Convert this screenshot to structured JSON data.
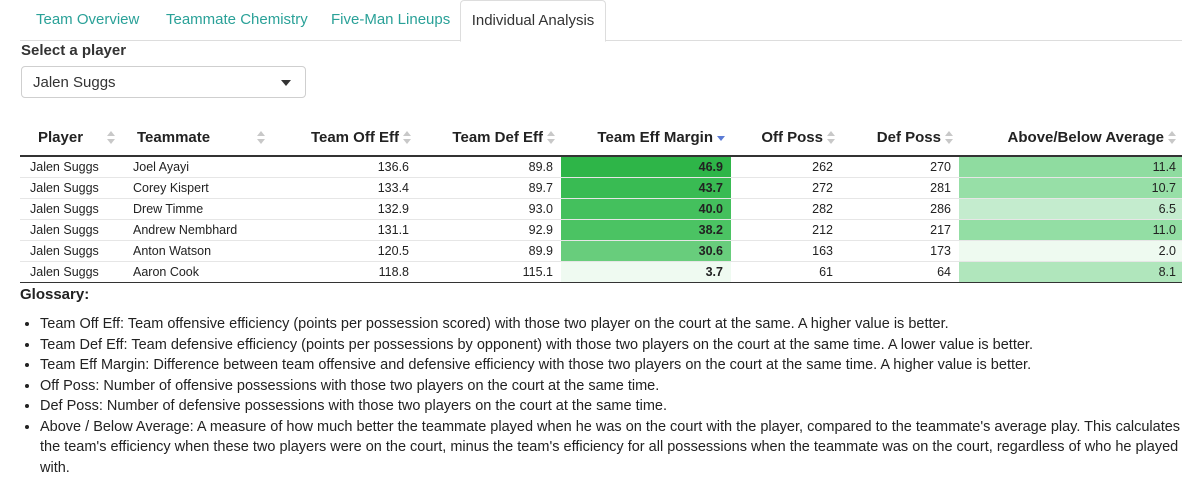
{
  "tabs": [
    {
      "label": "Team Overview"
    },
    {
      "label": "Teammate Chemistry"
    },
    {
      "label": "Five-Man Lineups"
    },
    {
      "label": "Individual Analysis"
    }
  ],
  "select": {
    "label": "Select a player",
    "value": "Jalen Suggs"
  },
  "table": {
    "headers": [
      "Player",
      "Teammate",
      "Team Off Eff",
      "Team Def Eff",
      "Team Eff Margin",
      "Off Poss",
      "Def Poss",
      "Above/Below Average"
    ],
    "sorted_column": "Team Eff Margin",
    "sort_direction": "descending",
    "rows": [
      {
        "player": "Jalen Suggs",
        "teammate": "Joel Ayayi",
        "off_eff": "136.6",
        "def_eff": "89.8",
        "margin": "46.9",
        "off_poss": "262",
        "def_poss": "270",
        "above": "11.4",
        "margin_color": "#2eb548",
        "above_color": "#8fdca0"
      },
      {
        "player": "Jalen Suggs",
        "teammate": "Corey Kispert",
        "off_eff": "133.4",
        "def_eff": "89.7",
        "margin": "43.7",
        "off_poss": "272",
        "def_poss": "281",
        "above": "10.7",
        "margin_color": "#39bb53",
        "above_color": "#97dfa7"
      },
      {
        "player": "Jalen Suggs",
        "teammate": "Drew Timme",
        "off_eff": "132.9",
        "def_eff": "93.0",
        "margin": "40.0",
        "off_poss": "282",
        "def_poss": "286",
        "above": "6.5",
        "margin_color": "#44c05d",
        "above_color": "#c4ecce"
      },
      {
        "player": "Jalen Suggs",
        "teammate": "Andrew Nembhard",
        "off_eff": "131.1",
        "def_eff": "92.9",
        "margin": "38.2",
        "off_poss": "212",
        "def_poss": "217",
        "above": "11.0",
        "margin_color": "#4bc363",
        "above_color": "#93dea4"
      },
      {
        "player": "Jalen Suggs",
        "teammate": "Anton Watson",
        "off_eff": "120.5",
        "def_eff": "89.9",
        "margin": "30.6",
        "off_poss": "163",
        "def_poss": "173",
        "above": "2.0",
        "margin_color": "#68cd7c",
        "above_color": "#eefaf0"
      },
      {
        "player": "Jalen Suggs",
        "teammate": "Aaron Cook",
        "off_eff": "118.8",
        "def_eff": "115.1",
        "margin": "3.7",
        "off_poss": "61",
        "def_poss": "64",
        "above": "8.1",
        "margin_color": "#effaf1",
        "above_color": "#b0e6bc"
      }
    ]
  },
  "glossary": {
    "title": "Glossary:",
    "items": [
      "Team Off Eff: Team offensive efficiency (points per possession scored) with those two player on the court at the same. A higher value is better.",
      "Team Def Eff: Team defensive efficiency (points per possessions by opponent) with those two players on the court at the same time. A lower value is better.",
      "Team Eff Margin: Difference between team offensive and defensive efficiency with those two players on the court at the same time. A higher value is better.",
      "Off Poss: Number of offensive possessions with those two players on the court at the same time.",
      "Def Poss: Number of defensive possessions with those two players on the court at the same time.",
      "Above / Below Average: A measure of how much better the teammate played when he was on the court with the player, compared to the teammate's average play. This calculates the team's efficiency when these two players were on the court, minus the team's efficiency for all possessions when the teammate was on the court, regardless of who he played with."
    ]
  },
  "colors": {
    "tab_link": "#2aa198",
    "sort_active": "#5b7bd5",
    "sort_inactive": "#c8c8c8"
  }
}
